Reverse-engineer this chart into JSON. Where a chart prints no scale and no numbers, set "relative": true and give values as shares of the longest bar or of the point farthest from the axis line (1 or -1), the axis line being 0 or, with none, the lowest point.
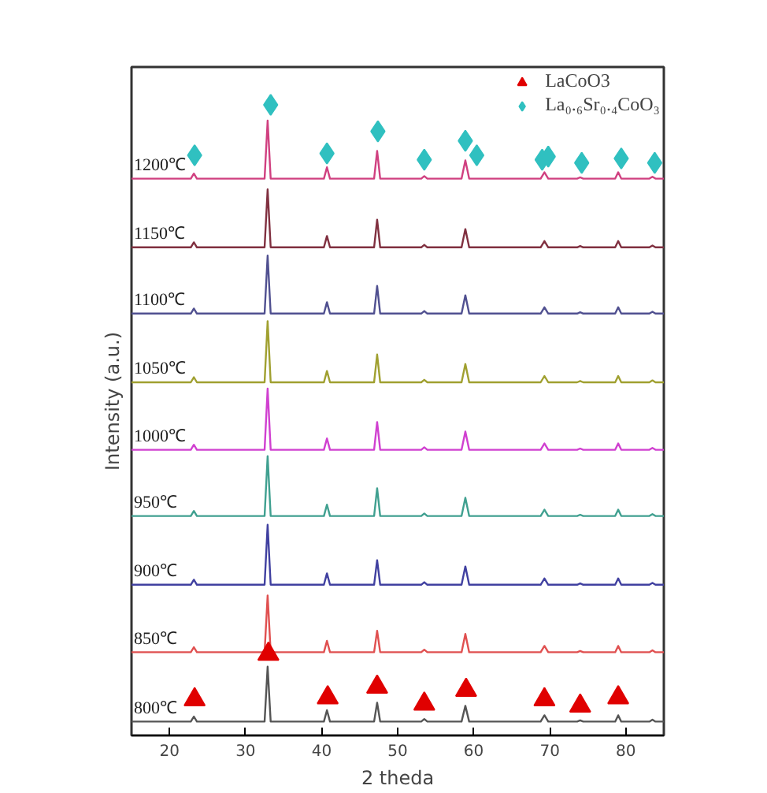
{
  "chart_data": {
    "type": "line",
    "xlabel": "2 theda",
    "ylabel": "Intensity (a.u.)",
    "relative": true,
    "xlim": [
      15,
      85
    ],
    "xticks": [
      20,
      30,
      40,
      50,
      60,
      70,
      80
    ],
    "grid": false,
    "legend": "top right",
    "line_style": "solid",
    "tick_labels": "x",
    "x": [
      15,
      22.8,
      23.2,
      23.6,
      32.5,
      32.9,
      33.3,
      40.3,
      40.7,
      41.1,
      46.9,
      47.3,
      47.7,
      53.1,
      53.5,
      53.9,
      58.4,
      58.9,
      59.4,
      68.8,
      69.3,
      69.8,
      73.6,
      74.0,
      74.4,
      78.6,
      79.0,
      79.4,
      83.1,
      83.5,
      83.9,
      85
    ],
    "series": [
      {
        "name": "800℃",
        "color": "#555555",
        "values": [
          0.022,
          0.022,
          0.03,
          0.022,
          0.022,
          0.109,
          0.022,
          0.022,
          0.04,
          0.022,
          0.022,
          0.052,
          0.022,
          0.022,
          0.026,
          0.022,
          0.022,
          0.047,
          0.022,
          0.022,
          0.032,
          0.022,
          0.022,
          0.024,
          0.022,
          0.022,
          0.032,
          0.022,
          0.022,
          0.025,
          0.022,
          0.022
        ]
      },
      {
        "name": "850℃",
        "color": "#e05050",
        "values": [
          0.132,
          0.132,
          0.14,
          0.132,
          0.132,
          0.222,
          0.132,
          0.132,
          0.15,
          0.132,
          0.132,
          0.166,
          0.132,
          0.132,
          0.136,
          0.132,
          0.132,
          0.161,
          0.132,
          0.132,
          0.142,
          0.132,
          0.132,
          0.134,
          0.132,
          0.132,
          0.142,
          0.132,
          0.132,
          0.135,
          0.132,
          0.132
        ]
      },
      {
        "name": "900℃",
        "color": "#4040a0",
        "values": [
          0.239,
          0.239,
          0.247,
          0.239,
          0.239,
          0.334,
          0.239,
          0.239,
          0.257,
          0.239,
          0.239,
          0.278,
          0.239,
          0.239,
          0.243,
          0.239,
          0.239,
          0.268,
          0.239,
          0.239,
          0.249,
          0.239,
          0.239,
          0.241,
          0.239,
          0.239,
          0.249,
          0.239,
          0.239,
          0.242,
          0.239,
          0.239
        ]
      },
      {
        "name": "950℃",
        "color": "#40a090",
        "values": [
          0.348,
          0.348,
          0.356,
          0.348,
          0.348,
          0.443,
          0.348,
          0.348,
          0.366,
          0.348,
          0.348,
          0.392,
          0.348,
          0.348,
          0.352,
          0.348,
          0.348,
          0.377,
          0.348,
          0.348,
          0.358,
          0.348,
          0.348,
          0.35,
          0.348,
          0.348,
          0.358,
          0.348,
          0.348,
          0.351,
          0.348,
          0.348
        ]
      },
      {
        "name": "1000℃",
        "color": "#d040d0",
        "values": [
          0.453,
          0.453,
          0.461,
          0.453,
          0.453,
          0.55,
          0.453,
          0.453,
          0.471,
          0.453,
          0.453,
          0.497,
          0.453,
          0.453,
          0.457,
          0.453,
          0.453,
          0.482,
          0.453,
          0.453,
          0.463,
          0.453,
          0.453,
          0.455,
          0.453,
          0.453,
          0.463,
          0.453,
          0.453,
          0.456,
          0.453,
          0.453
        ]
      },
      {
        "name": "1050℃",
        "color": "#a0a030",
        "values": [
          0.56,
          0.56,
          0.568,
          0.56,
          0.56,
          0.657,
          0.56,
          0.56,
          0.578,
          0.56,
          0.56,
          0.604,
          0.56,
          0.56,
          0.564,
          0.56,
          0.56,
          0.589,
          0.56,
          0.56,
          0.57,
          0.56,
          0.56,
          0.562,
          0.56,
          0.56,
          0.57,
          0.56,
          0.56,
          0.563,
          0.56,
          0.56
        ]
      },
      {
        "name": "1100℃",
        "color": "#505090",
        "values": [
          0.669,
          0.669,
          0.677,
          0.669,
          0.669,
          0.761,
          0.669,
          0.669,
          0.687,
          0.669,
          0.669,
          0.713,
          0.669,
          0.669,
          0.673,
          0.669,
          0.669,
          0.698,
          0.669,
          0.669,
          0.679,
          0.669,
          0.669,
          0.671,
          0.669,
          0.669,
          0.679,
          0.669,
          0.669,
          0.672,
          0.669,
          0.669
        ]
      },
      {
        "name": "1150℃",
        "color": "#803040",
        "values": [
          0.774,
          0.774,
          0.782,
          0.774,
          0.774,
          0.866,
          0.774,
          0.774,
          0.792,
          0.774,
          0.774,
          0.818,
          0.774,
          0.774,
          0.778,
          0.774,
          0.774,
          0.803,
          0.774,
          0.774,
          0.784,
          0.774,
          0.774,
          0.776,
          0.774,
          0.774,
          0.784,
          0.774,
          0.774,
          0.777,
          0.774,
          0.774
        ]
      },
      {
        "name": "1200℃",
        "color": "#d04080",
        "values": [
          0.883,
          0.883,
          0.891,
          0.883,
          0.883,
          0.975,
          0.883,
          0.883,
          0.901,
          0.883,
          0.883,
          0.927,
          0.883,
          0.883,
          0.887,
          0.883,
          0.883,
          0.912,
          0.883,
          0.883,
          0.893,
          0.883,
          0.883,
          0.885,
          0.883,
          0.883,
          0.893,
          0.883,
          0.883,
          0.886,
          0.883,
          0.883
        ]
      },
      {
        "name": "LaCoO3",
        "type": "scatter",
        "marker": "triangle",
        "color": "#e00000",
        "x": [
          23.3,
          33.0,
          40.8,
          47.3,
          53.5,
          59.0,
          69.3,
          74.0,
          79.0
        ],
        "values": [
          0.057,
          0.129,
          0.06,
          0.077,
          0.05,
          0.072,
          0.057,
          0.047,
          0.06
        ]
      },
      {
        "name": "La₀.₆Sr₀.₄CoO₃",
        "type": "scatter",
        "marker": "diamond",
        "color": "#30c0c0",
        "x": [
          23.3,
          33.3,
          40.7,
          47.4,
          53.5,
          58.9,
          60.4,
          69.0,
          69.8,
          74.2,
          79.4,
          83.8
        ],
        "values": [
          0.92,
          1.0,
          0.923,
          0.958,
          0.913,
          0.943,
          0.92,
          0.913,
          0.918,
          0.908,
          0.915,
          0.908
        ]
      }
    ]
  }
}
